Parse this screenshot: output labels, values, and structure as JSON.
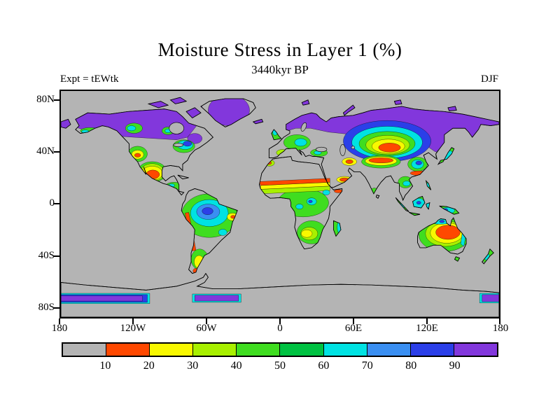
{
  "title": "Moisture Stress in Layer 1 (%)",
  "subtitle": "3440kyr BP",
  "experiment_label": "Expt = tEWtk",
  "season_label": "DJF",
  "y_axis": {
    "tick_labels": [
      "80N",
      "40N",
      "0",
      "40S",
      "80S"
    ]
  },
  "x_axis": {
    "tick_labels": [
      "180",
      "120W",
      "60W",
      "0",
      "60E",
      "120E",
      "180"
    ]
  },
  "colorbar": {
    "tick_labels": [
      "10",
      "20",
      "30",
      "40",
      "50",
      "60",
      "70",
      "80",
      "90"
    ],
    "levels": [
      10,
      20,
      30,
      40,
      50,
      60,
      70,
      80,
      90
    ],
    "colors": [
      "#B4B4B4",
      "#FF4800",
      "#F8F800",
      "#A8F000",
      "#3FDD20",
      "#00C242",
      "#00E2E2",
      "#3A8FF2",
      "#2B3FE8",
      "#8237DC"
    ]
  },
  "map": {
    "land_color": "#B4B4B4",
    "ocean_color": "#B4B4B4",
    "outline_color": "#000000"
  }
}
